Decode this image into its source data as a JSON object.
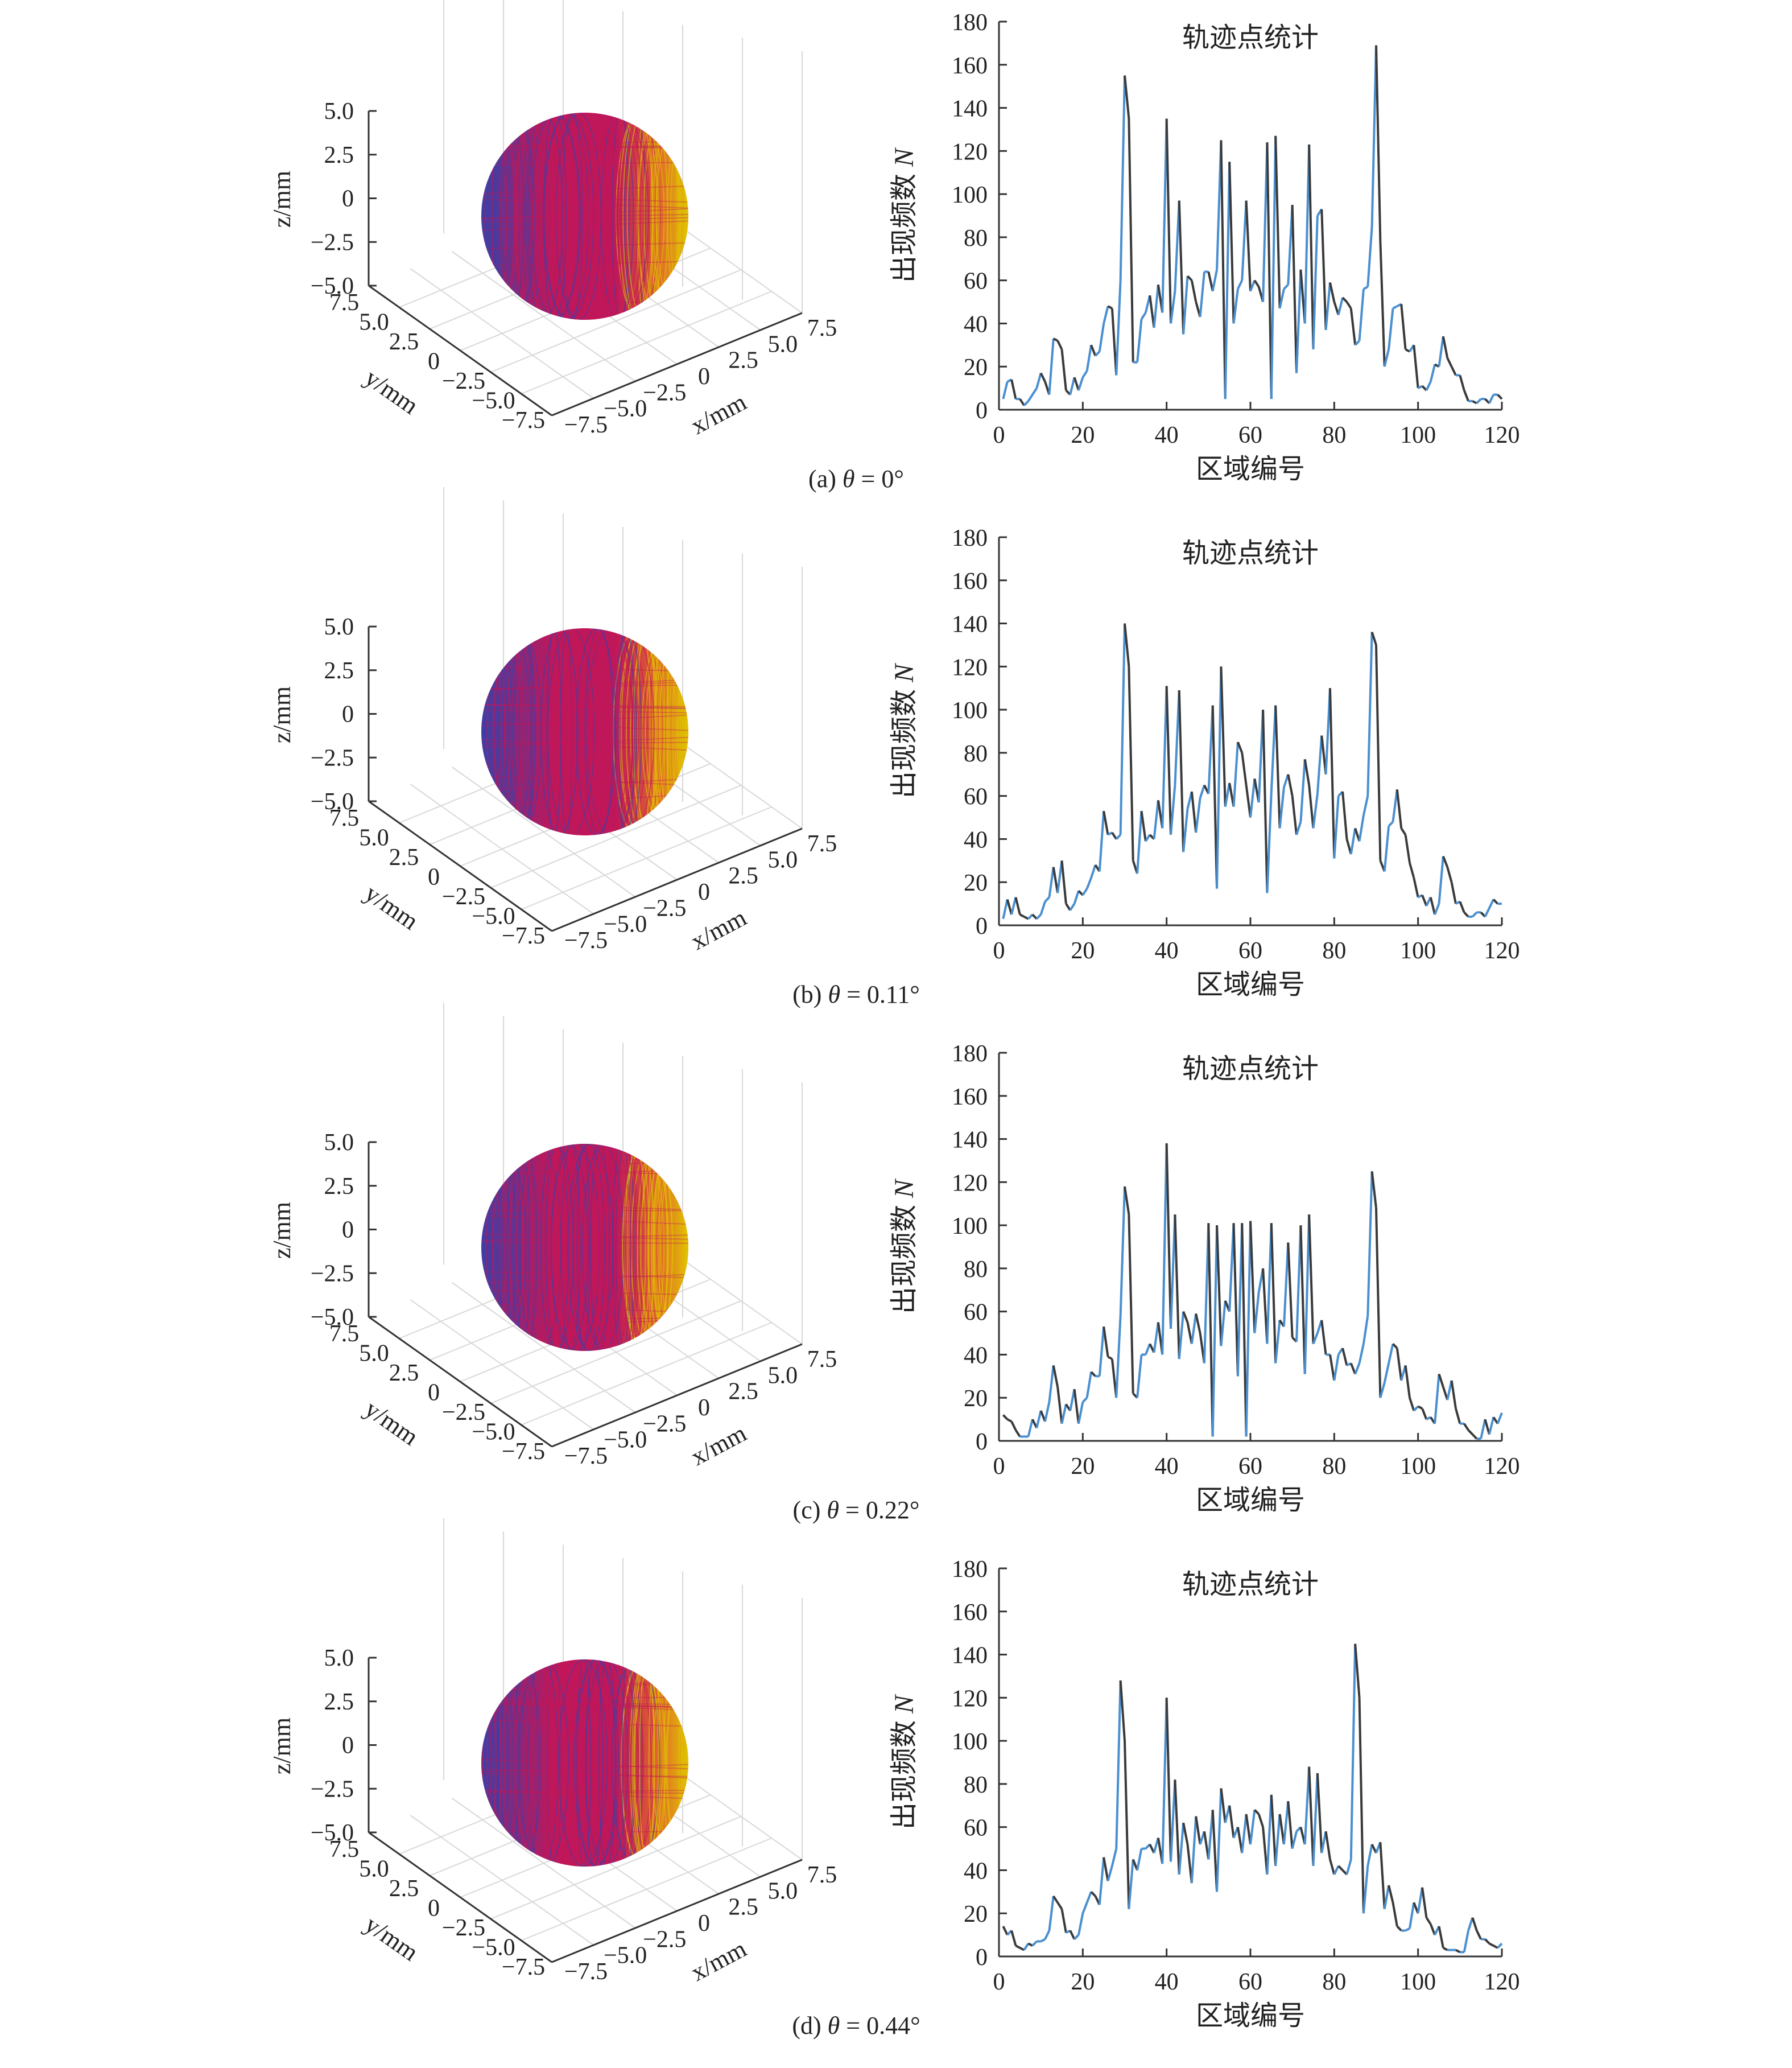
{
  "chart_data": [
    {
      "type": "line",
      "panel": "(a)",
      "caption": {
        "prefix": "(a) ",
        "symbol": "θ",
        "suffix": " = 0°"
      },
      "sphere_plot": {
        "type": "scatter3d",
        "axis_labels": {
          "x": "x/mm",
          "y": "y/mm",
          "z": "z/mm"
        },
        "z_ticks": [
          "5.0",
          "2.5",
          "0",
          "−2.5",
          "−5.0"
        ],
        "x_ticks": [
          "7.5",
          "5.0",
          "2.5",
          "0",
          "−2.5",
          "−5.0",
          "−7.5"
        ],
        "y_ticks": [
          "7.5",
          "5.0",
          "2.5",
          "0",
          "−2.5",
          "−5.0",
          "−7.5"
        ],
        "colors": [
          "#c0175a",
          "#3a3fa8",
          "#e0c400",
          "#e0642d"
        ]
      },
      "title": "轨迹点统计",
      "xlabel": "区域编号",
      "ylabel": {
        "text": "出现频数 ",
        "symbol": "N"
      },
      "xlim": [
        0,
        120
      ],
      "ylim": [
        0,
        180
      ],
      "xticks": [
        0,
        20,
        40,
        60,
        80,
        100,
        120
      ],
      "yticks": [
        0,
        20,
        40,
        60,
        80,
        100,
        120,
        140,
        160,
        180
      ],
      "line_colors": [
        "#4a8fd0",
        "#3a3a3a"
      ],
      "x": [
        1,
        2,
        3,
        4,
        5,
        6,
        7,
        8,
        9,
        10,
        11,
        12,
        13,
        14,
        15,
        16,
        17,
        18,
        19,
        20,
        21,
        22,
        23,
        24,
        25,
        26,
        27,
        28,
        29,
        30,
        31,
        32,
        33,
        34,
        35,
        36,
        37,
        38,
        39,
        40,
        41,
        42,
        43,
        44,
        45,
        46,
        47,
        48,
        49,
        50,
        51,
        52,
        53,
        54,
        55,
        56,
        57,
        58,
        59,
        60,
        61,
        62,
        63,
        64,
        65,
        66,
        67,
        68,
        69,
        70,
        71,
        72,
        73,
        74,
        75,
        76,
        77,
        78,
        79,
        80,
        81,
        82,
        83,
        84,
        85,
        86,
        87,
        88,
        89,
        90,
        91,
        92,
        93,
        94,
        95,
        96,
        97,
        98,
        99,
        100,
        101,
        102,
        103,
        104,
        105,
        106,
        107,
        108,
        109,
        110,
        111,
        112,
        113,
        114,
        115,
        116,
        117,
        118,
        119,
        120
      ],
      "y": [
        5,
        13,
        14,
        5,
        5,
        2,
        4,
        7,
        10,
        17,
        13,
        7,
        33,
        32,
        28,
        9,
        7,
        15,
        9,
        15,
        18,
        30,
        25,
        27,
        40,
        48,
        47,
        16,
        60,
        155,
        135,
        22,
        22,
        42,
        45,
        53,
        38,
        58,
        45,
        135,
        40,
        55,
        97,
        35,
        62,
        60,
        50,
        43,
        64,
        64,
        55,
        65,
        125,
        5,
        115,
        40,
        56,
        60,
        97,
        55,
        60,
        57,
        50,
        124,
        5,
        127,
        47,
        56,
        58,
        95,
        17,
        65,
        40,
        123,
        28,
        90,
        93,
        37,
        59,
        50,
        44,
        52,
        50,
        47,
        30,
        32,
        56,
        57,
        85,
        169,
        78,
        20,
        28,
        47,
        48,
        49,
        28,
        27,
        30,
        10,
        11,
        9,
        13,
        21,
        20,
        34,
        24,
        20,
        16,
        16,
        9,
        4,
        4,
        3,
        5,
        5,
        3,
        7,
        7,
        5
      ]
    },
    {
      "type": "line",
      "panel": "(b)",
      "caption": {
        "prefix": "(b) ",
        "symbol": "θ",
        "suffix": " = 0.11°"
      },
      "sphere_plot": {
        "type": "scatter3d",
        "axis_labels": {
          "x": "x/mm",
          "y": "y/mm",
          "z": "z/mm"
        },
        "z_ticks": [
          "5.0",
          "2.5",
          "0",
          "−2.5",
          "−5.0"
        ],
        "x_ticks": [
          "7.5",
          "5.0",
          "2.5",
          "0",
          "−2.5",
          "−5.0",
          "−7.5"
        ],
        "y_ticks": [
          "7.5",
          "5.0",
          "2.5",
          "0",
          "−2.5",
          "−5.0",
          "−7.5"
        ],
        "colors": [
          "#c0175a",
          "#3a3fa8",
          "#e0c400",
          "#e0642d"
        ]
      },
      "title": "轨迹点统计",
      "xlabel": "区域编号",
      "ylabel": {
        "text": "出现频数 ",
        "symbol": "N"
      },
      "xlim": [
        0,
        120
      ],
      "ylim": [
        0,
        180
      ],
      "xticks": [
        0,
        20,
        40,
        60,
        80,
        100,
        120
      ],
      "yticks": [
        0,
        20,
        40,
        60,
        80,
        100,
        120,
        140,
        160,
        180
      ],
      "line_colors": [
        "#4a8fd0",
        "#3a3a3a"
      ],
      "x": [
        1,
        2,
        3,
        4,
        5,
        6,
        7,
        8,
        9,
        10,
        11,
        12,
        13,
        14,
        15,
        16,
        17,
        18,
        19,
        20,
        21,
        22,
        23,
        24,
        25,
        26,
        27,
        28,
        29,
        30,
        31,
        32,
        33,
        34,
        35,
        36,
        37,
        38,
        39,
        40,
        41,
        42,
        43,
        44,
        45,
        46,
        47,
        48,
        49,
        50,
        51,
        52,
        53,
        54,
        55,
        56,
        57,
        58,
        59,
        60,
        61,
        62,
        63,
        64,
        65,
        66,
        67,
        68,
        69,
        70,
        71,
        72,
        73,
        74,
        75,
        76,
        77,
        78,
        79,
        80,
        81,
        82,
        83,
        84,
        85,
        86,
        87,
        88,
        89,
        90,
        91,
        92,
        93,
        94,
        95,
        96,
        97,
        98,
        99,
        100,
        101,
        102,
        103,
        104,
        105,
        106,
        107,
        108,
        109,
        110,
        111,
        112,
        113,
        114,
        115,
        116,
        117,
        118,
        119,
        120
      ],
      "y": [
        3,
        12,
        5,
        13,
        5,
        4,
        3,
        5,
        3,
        5,
        11,
        13,
        27,
        15,
        30,
        10,
        7,
        10,
        16,
        14,
        17,
        22,
        28,
        25,
        53,
        42,
        43,
        40,
        42,
        140,
        120,
        30,
        24,
        53,
        39,
        42,
        40,
        58,
        45,
        111,
        42,
        65,
        109,
        34,
        54,
        62,
        43,
        59,
        65,
        61,
        102,
        17,
        120,
        55,
        66,
        55,
        85,
        80,
        65,
        50,
        68,
        57,
        100,
        15,
        62,
        102,
        45,
        64,
        70,
        60,
        42,
        48,
        77,
        65,
        45,
        61,
        88,
        70,
        110,
        31,
        60,
        62,
        40,
        33,
        45,
        39,
        51,
        60,
        136,
        130,
        30,
        25,
        46,
        48,
        63,
        45,
        42,
        29,
        22,
        13,
        14,
        9,
        13,
        5,
        10,
        32,
        27,
        20,
        10,
        11,
        6,
        4,
        4,
        6,
        6,
        4,
        8,
        12,
        10,
        10
      ]
    },
    {
      "type": "line",
      "panel": "(c)",
      "caption": {
        "prefix": "(c) ",
        "symbol": "θ",
        "suffix": " = 0.22°"
      },
      "sphere_plot": {
        "type": "scatter3d",
        "axis_labels": {
          "x": "x/mm",
          "y": "y/mm",
          "z": "z/mm"
        },
        "z_ticks": [
          "5.0",
          "2.5",
          "0",
          "−2.5",
          "−5.0"
        ],
        "x_ticks": [
          "7.5",
          "5.0",
          "2.5",
          "0",
          "−2.5",
          "−5.0",
          "−7.5"
        ],
        "y_ticks": [
          "7.5",
          "5.0",
          "2.5",
          "0",
          "−2.5",
          "−5.0",
          "−7.5"
        ],
        "colors": [
          "#c0175a",
          "#3a3fa8",
          "#e0c400",
          "#e0642d"
        ]
      },
      "title": "轨迹点统计",
      "xlabel": "区域编号",
      "ylabel": {
        "text": "出现频数 ",
        "symbol": "N"
      },
      "xlim": [
        0,
        120
      ],
      "ylim": [
        0,
        180
      ],
      "xticks": [
        0,
        20,
        40,
        60,
        80,
        100,
        120
      ],
      "yticks": [
        0,
        20,
        40,
        60,
        80,
        100,
        120,
        140,
        160,
        180
      ],
      "line_colors": [
        "#4a8fd0",
        "#3a3a3a"
      ],
      "x": [
        1,
        2,
        3,
        4,
        5,
        6,
        7,
        8,
        9,
        10,
        11,
        12,
        13,
        14,
        15,
        16,
        17,
        18,
        19,
        20,
        21,
        22,
        23,
        24,
        25,
        26,
        27,
        28,
        29,
        30,
        31,
        32,
        33,
        34,
        35,
        36,
        37,
        38,
        39,
        40,
        41,
        42,
        43,
        44,
        45,
        46,
        47,
        48,
        49,
        50,
        51,
        52,
        53,
        54,
        55,
        56,
        57,
        58,
        59,
        60,
        61,
        62,
        63,
        64,
        65,
        66,
        67,
        68,
        69,
        70,
        71,
        72,
        73,
        74,
        75,
        76,
        77,
        78,
        79,
        80,
        81,
        82,
        83,
        84,
        85,
        86,
        87,
        88,
        89,
        90,
        91,
        92,
        93,
        94,
        95,
        96,
        97,
        98,
        99,
        100,
        101,
        102,
        103,
        104,
        105,
        106,
        107,
        108,
        109,
        110,
        111,
        112,
        113,
        114,
        115,
        116,
        117,
        118,
        119,
        120
      ],
      "y": [
        12,
        10,
        9,
        5,
        2,
        2,
        2,
        10,
        6,
        14,
        9,
        18,
        35,
        25,
        8,
        17,
        14,
        24,
        8,
        18,
        20,
        32,
        30,
        30,
        53,
        39,
        38,
        20,
        58,
        118,
        105,
        22,
        20,
        40,
        40,
        45,
        41,
        55,
        40,
        138,
        52,
        105,
        38,
        60,
        55,
        45,
        59,
        50,
        36,
        101,
        2,
        100,
        44,
        65,
        60,
        101,
        30,
        101,
        2,
        102,
        50,
        69,
        80,
        45,
        101,
        36,
        56,
        53,
        92,
        48,
        46,
        100,
        31,
        105,
        45,
        50,
        56,
        40,
        40,
        28,
        40,
        43,
        35,
        36,
        31,
        36,
        45,
        58,
        125,
        108,
        20,
        27,
        36,
        45,
        43,
        28,
        35,
        20,
        14,
        16,
        15,
        10,
        11,
        8,
        31,
        25,
        19,
        28,
        15,
        8,
        8,
        5,
        3,
        1,
        1,
        10,
        3,
        11,
        8,
        13
      ]
    },
    {
      "type": "line",
      "panel": "(d)",
      "caption": {
        "prefix": "(d) ",
        "symbol": "θ",
        "suffix": " = 0.44°"
      },
      "sphere_plot": {
        "type": "scatter3d",
        "axis_labels": {
          "x": "x/mm",
          "y": "y/mm",
          "z": "z/mm"
        },
        "z_ticks": [
          "5.0",
          "2.5",
          "0",
          "−2.5",
          "−5.0"
        ],
        "x_ticks": [
          "7.5",
          "5.0",
          "2.5",
          "0",
          "−2.5",
          "−5.0",
          "−7.5"
        ],
        "y_ticks": [
          "7.5",
          "5.0",
          "2.5",
          "0",
          "−2.5",
          "−5.0",
          "−7.5"
        ],
        "colors": [
          "#c0175a",
          "#3a3fa8",
          "#e0c400",
          "#e0642d"
        ]
      },
      "title": "轨迹点统计",
      "xlabel": "区域编号",
      "ylabel": {
        "text": "出现频数 ",
        "symbol": "N"
      },
      "xlim": [
        0,
        120
      ],
      "ylim": [
        0,
        180
      ],
      "xticks": [
        0,
        20,
        40,
        60,
        80,
        100,
        120
      ],
      "yticks": [
        0,
        20,
        40,
        60,
        80,
        100,
        120,
        140,
        160,
        180
      ],
      "line_colors": [
        "#4a8fd0",
        "#3a3a3a"
      ],
      "x": [
        1,
        2,
        3,
        4,
        5,
        6,
        7,
        8,
        9,
        10,
        11,
        12,
        13,
        14,
        15,
        16,
        17,
        18,
        19,
        20,
        21,
        22,
        23,
        24,
        25,
        26,
        27,
        28,
        29,
        30,
        31,
        32,
        33,
        34,
        35,
        36,
        37,
        38,
        39,
        40,
        41,
        42,
        43,
        44,
        45,
        46,
        47,
        48,
        49,
        50,
        51,
        52,
        53,
        54,
        55,
        56,
        57,
        58,
        59,
        60,
        61,
        62,
        63,
        64,
        65,
        66,
        67,
        68,
        69,
        70,
        71,
        72,
        73,
        74,
        75,
        76,
        77,
        78,
        79,
        80,
        81,
        82,
        83,
        84,
        85,
        86,
        87,
        88,
        89,
        90,
        91,
        92,
        93,
        94,
        95,
        96,
        97,
        98,
        99,
        100,
        101,
        102,
        103,
        104,
        105,
        106,
        107,
        108,
        109,
        110,
        111,
        112,
        113,
        114,
        115,
        116,
        117,
        118,
        119,
        120
      ],
      "y": [
        14,
        10,
        12,
        5,
        4,
        3,
        6,
        5,
        7,
        7,
        8,
        12,
        28,
        25,
        22,
        11,
        12,
        8,
        10,
        20,
        25,
        30,
        28,
        24,
        46,
        35,
        42,
        50,
        128,
        100,
        22,
        45,
        40,
        50,
        50,
        52,
        48,
        55,
        43,
        120,
        44,
        82,
        38,
        62,
        52,
        34,
        65,
        52,
        58,
        45,
        68,
        30,
        78,
        62,
        70,
        55,
        60,
        48,
        66,
        52,
        68,
        66,
        60,
        38,
        75,
        42,
        66,
        52,
        72,
        50,
        58,
        60,
        52,
        88,
        42,
        85,
        48,
        58,
        45,
        38,
        42,
        40,
        38,
        45,
        145,
        120,
        20,
        42,
        52,
        48,
        53,
        22,
        33,
        25,
        14,
        12,
        12,
        13,
        25,
        20,
        32,
        18,
        15,
        10,
        14,
        4,
        3,
        3,
        3,
        2,
        2,
        12,
        18,
        12,
        8,
        8,
        6,
        5,
        4,
        6
      ]
    }
  ]
}
